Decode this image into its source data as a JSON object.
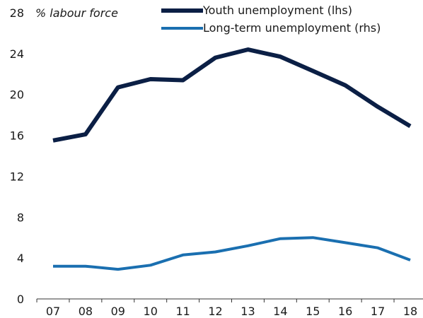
{
  "chart_data": {
    "type": "line",
    "unit_label": "% labour force",
    "categories": [
      "07",
      "08",
      "09",
      "10",
      "11",
      "12",
      "13",
      "14",
      "15",
      "16",
      "17",
      "18"
    ],
    "y_ticks": [
      "0",
      "4",
      "8",
      "12",
      "16",
      "20",
      "24",
      "28"
    ],
    "ylim": [
      0,
      28
    ],
    "grid": false,
    "legend_position": "top",
    "series": [
      {
        "name": "Youth unemployment (lhs)",
        "color": "#0b1f45",
        "values": [
          15.5,
          16.1,
          20.7,
          21.5,
          21.4,
          23.6,
          24.4,
          23.7,
          22.3,
          20.9,
          18.8,
          16.9
        ]
      },
      {
        "name": "Long-term unemployment (rhs)",
        "color": "#1a6fb0",
        "values": [
          3.2,
          3.2,
          2.9,
          3.3,
          4.3,
          4.6,
          5.2,
          5.9,
          6.0,
          5.5,
          5.0,
          3.8
        ]
      }
    ]
  }
}
